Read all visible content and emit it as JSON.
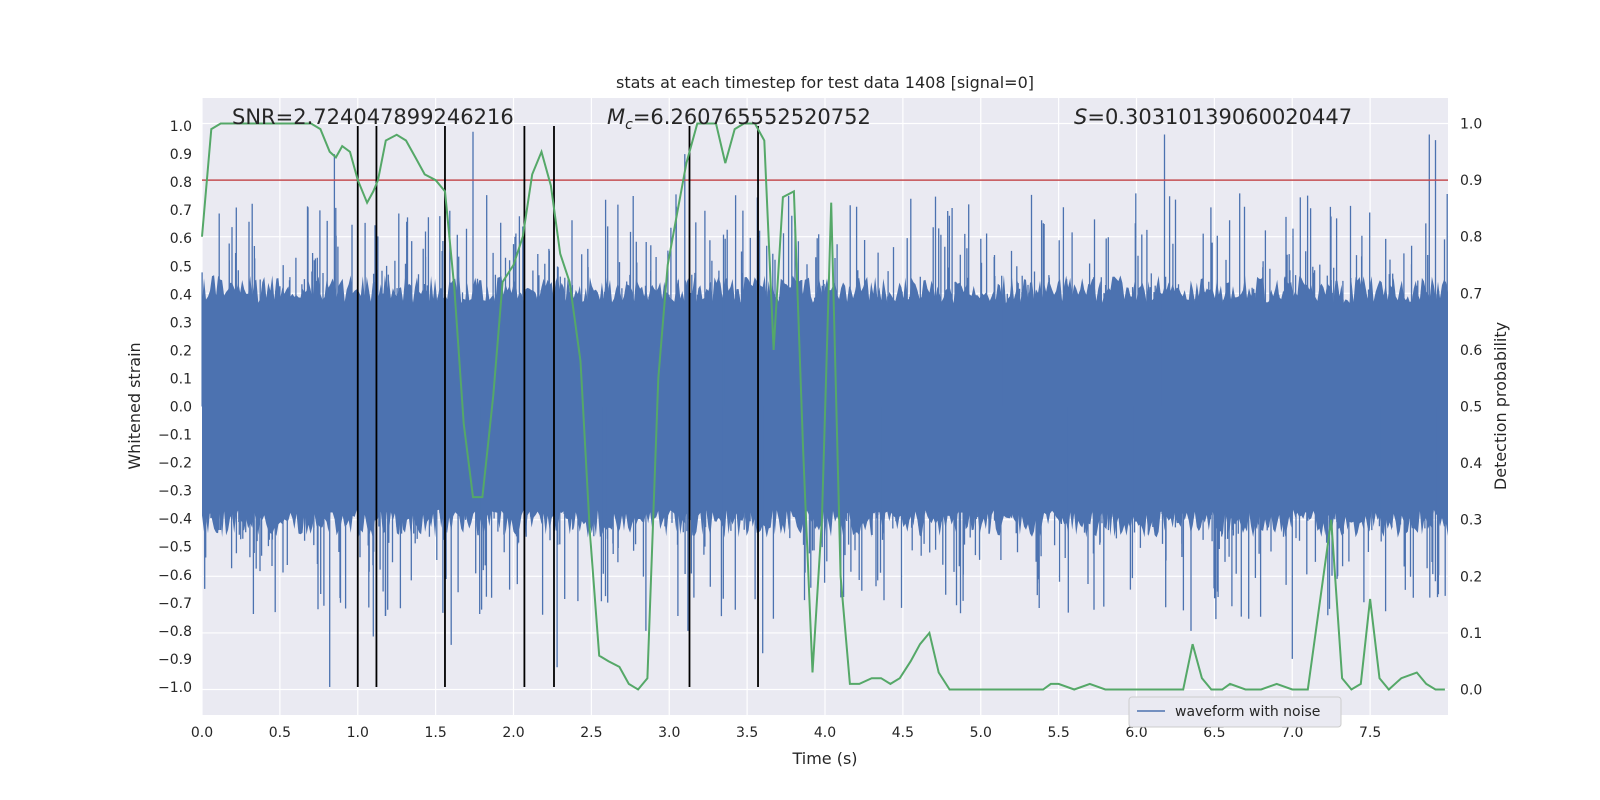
{
  "chart_data": {
    "type": "line",
    "title": "stats at each timestep for test data 1408 [signal=0]",
    "xlabel": "Time (s)",
    "ylabel": "Whitened strain",
    "y2label": "Detection probability",
    "xlim": [
      0,
      8
    ],
    "ylim": [
      -1.1,
      1.1
    ],
    "y2lim": [
      -0.045,
      1.045
    ],
    "x_ticks": [
      0.0,
      0.5,
      1.0,
      1.5,
      2.0,
      2.5,
      3.0,
      3.5,
      4.0,
      4.5,
      5.0,
      5.5,
      6.0,
      6.5,
      7.0,
      7.5
    ],
    "x_tick_labels": [
      "0.0",
      "0.5",
      "1.0",
      "1.5",
      "2.0",
      "2.5",
      "3.0",
      "3.5",
      "4.0",
      "4.5",
      "5.0",
      "5.5",
      "6.0",
      "6.5",
      "7.0",
      "7.5"
    ],
    "y_ticks": [
      1.0,
      0.9,
      0.8,
      0.7,
      0.6,
      0.5,
      0.4,
      0.3,
      0.2,
      0.1,
      0.0,
      -0.1,
      -0.2,
      -0.3,
      -0.4,
      -0.5,
      -0.6,
      -0.7,
      -0.8,
      -0.9,
      -1.0
    ],
    "y_tick_labels": [
      "1.0",
      "0.9",
      "0.8",
      "0.7",
      "0.6",
      "0.5",
      "0.4",
      "0.3",
      "0.2",
      "0.1",
      "0.0",
      "−0.1",
      "−0.2",
      "−0.3",
      "−0.4",
      "−0.5",
      "−0.6",
      "−0.7",
      "−0.8",
      "−0.9",
      "−1.0"
    ],
    "y2_ticks": [
      1.0,
      0.9,
      0.8,
      0.7,
      0.6,
      0.5,
      0.4,
      0.3,
      0.2,
      0.1,
      0.0
    ],
    "y2_tick_labels": [
      "1.0",
      "0.9",
      "0.8",
      "0.7",
      "0.6",
      "0.5",
      "0.4",
      "0.3",
      "0.2",
      "0.1",
      "0.0"
    ],
    "grid": true,
    "legend": {
      "position": "bottom-right",
      "entries": [
        "waveform with noise"
      ]
    },
    "annotations": {
      "snr": "SNR=2.724047899246216",
      "mc_symbol": "M",
      "mc_subscript": "c",
      "mc_value": "=6.260765552520752",
      "s_symbol": "S",
      "s_value": "=0.30310139060020447"
    },
    "threshold": {
      "y2": 0.9,
      "color": "#c44e52"
    },
    "vertical_lines_x": [
      1.0,
      1.12,
      1.56,
      2.07,
      2.26,
      3.13,
      3.57
    ],
    "waveform": {
      "name": "waveform with noise",
      "color": "#4c72b0",
      "x_range": [
        0,
        8
      ],
      "typical_envelope": 0.4,
      "peaks": [
        [
          0.85,
          0.9
        ],
        [
          0.82,
          -1.0
        ],
        [
          1.1,
          -0.82
        ],
        [
          1.56,
          0.75
        ],
        [
          1.74,
          0.98
        ],
        [
          1.6,
          -0.85
        ],
        [
          2.28,
          -0.93
        ],
        [
          3.1,
          0.9
        ],
        [
          3.12,
          -0.8
        ],
        [
          3.6,
          -0.88
        ],
        [
          3.95,
          0.6
        ],
        [
          6.18,
          0.97
        ],
        [
          6.35,
          -0.8
        ],
        [
          7.0,
          -0.9
        ],
        [
          7.88,
          0.97
        ],
        [
          7.92,
          0.95
        ],
        [
          0.33,
          -0.74
        ],
        [
          2.85,
          -0.8
        ]
      ]
    },
    "series": [
      {
        "name": "detection probability",
        "axis": "right",
        "color": "#55a868",
        "x": [
          0.0,
          0.06,
          0.12,
          0.2,
          0.3,
          0.4,
          0.5,
          0.6,
          0.7,
          0.76,
          0.82,
          0.86,
          0.9,
          0.95,
          1.0,
          1.06,
          1.1,
          1.13,
          1.18,
          1.25,
          1.31,
          1.37,
          1.43,
          1.5,
          1.56,
          1.62,
          1.68,
          1.74,
          1.8,
          1.87,
          1.93,
          2.0,
          2.06,
          2.12,
          2.18,
          2.24,
          2.3,
          2.36,
          2.43,
          2.49,
          2.55,
          2.61,
          2.68,
          2.74,
          2.8,
          2.86,
          2.93,
          2.99,
          3.05,
          3.11,
          3.18,
          3.24,
          3.3,
          3.36,
          3.42,
          3.48,
          3.55,
          3.61,
          3.67,
          3.73,
          3.8,
          3.86,
          3.92,
          3.98,
          4.04,
          4.1,
          4.16,
          4.22,
          4.3,
          4.36,
          4.42,
          4.48,
          4.55,
          4.61,
          4.67,
          4.73,
          4.8,
          4.86,
          4.92,
          5.0,
          5.2,
          5.4,
          5.45,
          5.5,
          5.6,
          5.7,
          5.8,
          5.9,
          6.0,
          6.1,
          6.2,
          6.3,
          6.36,
          6.42,
          6.48,
          6.55,
          6.6,
          6.7,
          6.8,
          6.9,
          7.0,
          7.1,
          7.2,
          7.25,
          7.32,
          7.38,
          7.44,
          7.5,
          7.56,
          7.62,
          7.7,
          7.8,
          7.86,
          7.92,
          7.98
        ],
        "values": [
          0.8,
          0.99,
          1.0,
          1.0,
          1.0,
          1.0,
          1.0,
          1.0,
          1.0,
          0.99,
          0.95,
          0.94,
          0.96,
          0.95,
          0.9,
          0.86,
          0.88,
          0.9,
          0.97,
          0.98,
          0.97,
          0.94,
          0.91,
          0.9,
          0.88,
          0.71,
          0.47,
          0.34,
          0.34,
          0.52,
          0.72,
          0.75,
          0.8,
          0.91,
          0.95,
          0.89,
          0.77,
          0.72,
          0.58,
          0.28,
          0.06,
          0.05,
          0.04,
          0.01,
          0.0,
          0.02,
          0.55,
          0.75,
          0.84,
          0.93,
          1.0,
          1.0,
          1.0,
          0.93,
          0.99,
          1.0,
          1.0,
          0.97,
          0.6,
          0.87,
          0.88,
          0.42,
          0.03,
          0.3,
          0.86,
          0.2,
          0.01,
          0.01,
          0.02,
          0.02,
          0.01,
          0.02,
          0.05,
          0.08,
          0.1,
          0.03,
          0.0,
          0.0,
          0.0,
          0.0,
          0.0,
          0.0,
          0.01,
          0.01,
          0.0,
          0.01,
          0.0,
          0.0,
          0.0,
          0.0,
          0.0,
          0.0,
          0.08,
          0.02,
          0.0,
          0.0,
          0.01,
          0.0,
          0.0,
          0.01,
          0.0,
          0.0,
          0.2,
          0.3,
          0.02,
          0.0,
          0.01,
          0.16,
          0.02,
          0.0,
          0.02,
          0.03,
          0.01,
          0.0,
          0.0
        ]
      }
    ]
  }
}
